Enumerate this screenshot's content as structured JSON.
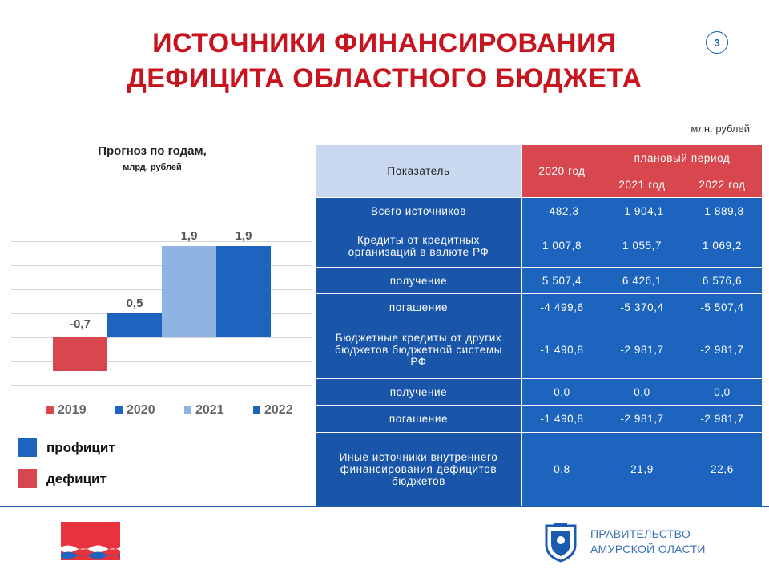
{
  "title_line1": "ИСТОЧНИКИ ФИНАНСИРОВАНИЯ",
  "title_line2": "ДЕФИЦИТА ОБЛАСТНОГО БЮДЖЕТА",
  "page_number": "3",
  "units": "млн. рублей",
  "chart_title": "Прогноз по годам,",
  "chart_subtitle": "млрд. рублей",
  "legend": {
    "surplus": "профицит",
    "deficit": "дефицит"
  },
  "colors": {
    "red": "#d9474e",
    "blue": "#1c64bd",
    "light_blue": "#8fb4e3",
    "title_red": "#c8141e"
  },
  "chart_data": {
    "type": "bar",
    "title": "Прогноз по годам,",
    "subtitle": "млрд. рублей",
    "categories": [
      "2019",
      "2020",
      "2021",
      "2022"
    ],
    "values": [
      -0.7,
      0.5,
      1.9,
      1.9
    ],
    "labels": [
      "-0,7",
      "0,5",
      "1,9",
      "1,9"
    ],
    "colors": [
      "#d9474e",
      "#1c64bd",
      "#8fb4e3",
      "#1c64bd"
    ],
    "ylim": [
      -1.1,
      2.4
    ],
    "grid": true,
    "legend_position": "bottom"
  },
  "table": {
    "header": {
      "indicator": "Показатель",
      "year_2020": "2020 год",
      "planned": "плановый период",
      "year_2021": "2021 год",
      "year_2022": "2022 год"
    },
    "rows": [
      {
        "label": "Всего источников",
        "v2020": "-482,3",
        "v2021": "-1 904,1",
        "v2022": "-1 889,8"
      },
      {
        "label": "Кредиты от кредитных организаций в валюте РФ",
        "v2020": "1 007,8",
        "v2021": "1 055,7",
        "v2022": "1 069,2"
      },
      {
        "label": "получение",
        "v2020": "5 507,4",
        "v2021": "6 426,1",
        "v2022": "6 576,6"
      },
      {
        "label": "погашение",
        "v2020": "-4 499,6",
        "v2021": "-5 370,4",
        "v2022": "-5 507,4"
      },
      {
        "label": "Бюджетные кредиты от других бюджетов бюджетной системы РФ",
        "v2020": "-1 490,8",
        "v2021": "-2 981,7",
        "v2022": "-2 981,7"
      },
      {
        "label": "получение",
        "v2020": "0,0",
        "v2021": "0,0",
        "v2022": "0,0"
      },
      {
        "label": "погашение",
        "v2020": "-1 490,8",
        "v2021": "-2 981,7",
        "v2022": "-2 981,7"
      },
      {
        "label": "Иные источники внутреннего финансирования дефицитов бюджетов",
        "v2020": "0,8",
        "v2021": "21,9",
        "v2022": "22,6"
      }
    ]
  },
  "footer": {
    "gov_line1": "ПРАВИТЕЛЬСТВО",
    "gov_line2": "АМУРСКОЙ ОЛАСТИ"
  }
}
